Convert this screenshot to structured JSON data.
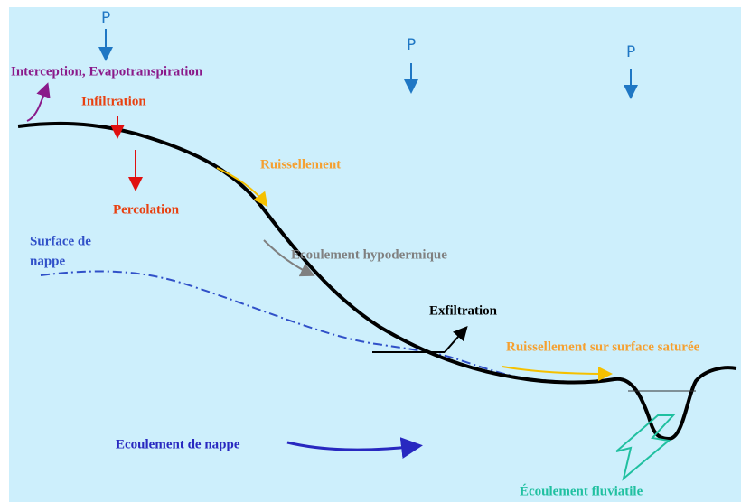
{
  "precipitation": [
    "P",
    "P",
    "P"
  ],
  "labels": {
    "interception": "Interception, Evapotranspiration",
    "infiltration": "Infiltration",
    "percolation": "Percolation",
    "ruissellement": "Ruissellement",
    "surface_nappe": [
      "Surface de",
      "nappe"
    ],
    "hypodermique": "Ecoulement hypodermique",
    "exfiltration": "Exfiltration",
    "ruissellement_sature": "Ruissellement sur surface saturée",
    "ecoulement_nappe": "Ecoulement de nappe",
    "fluviatile": "Écoulement fluviatile"
  }
}
